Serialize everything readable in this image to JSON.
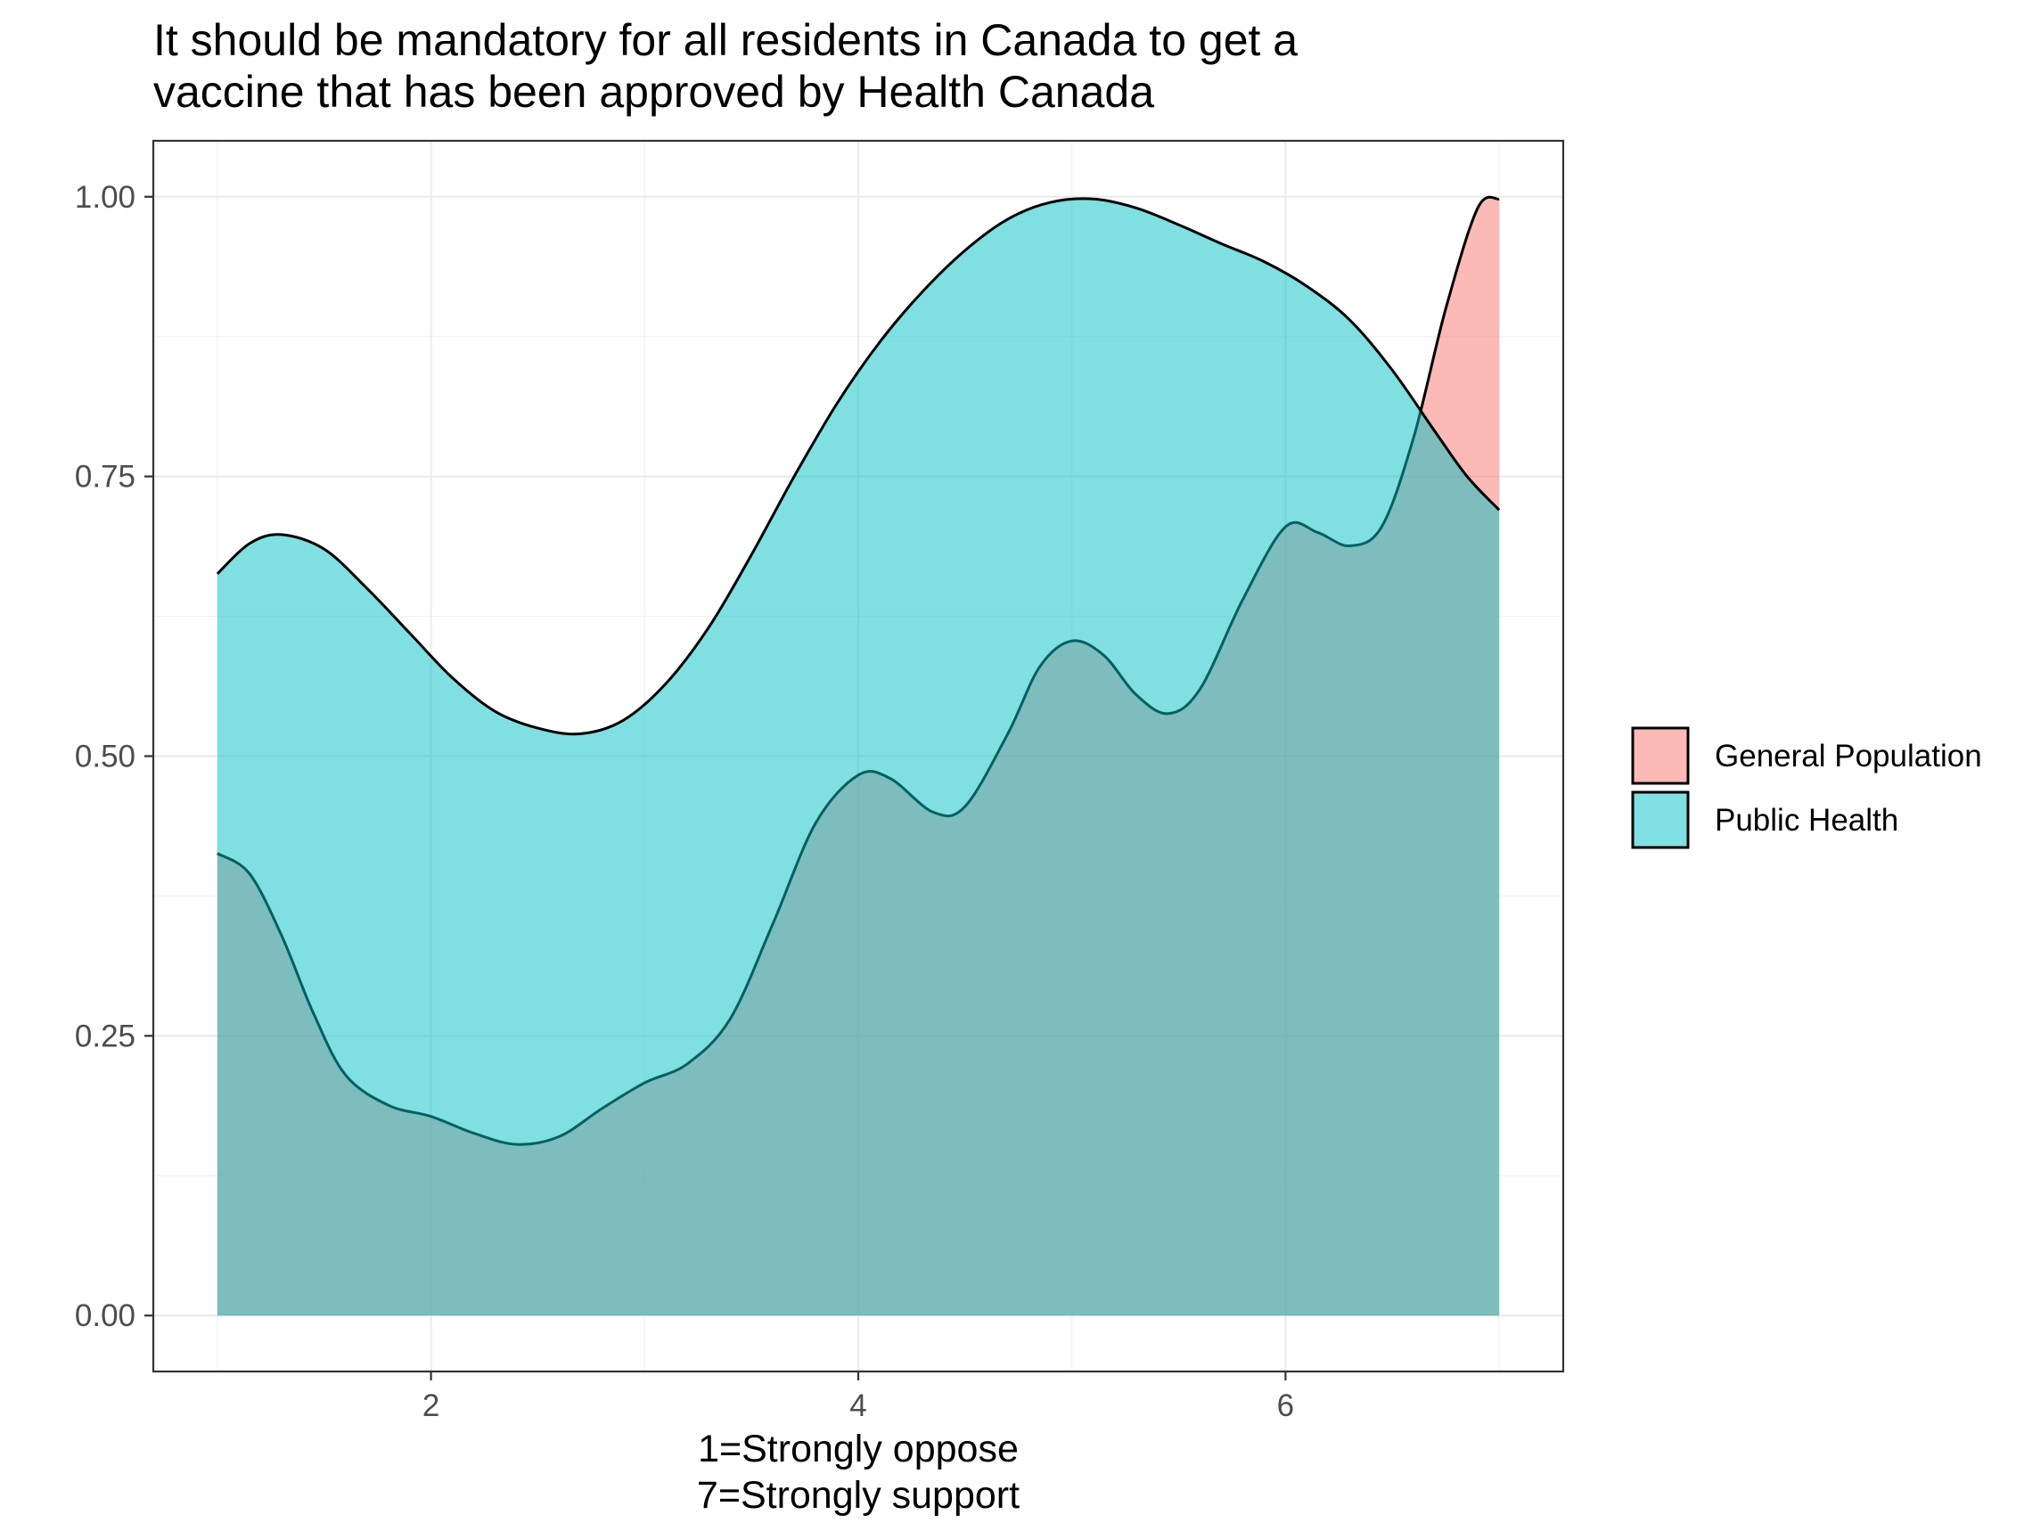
{
  "chart_data": {
    "type": "area",
    "title_lines": [
      "It should be mandatory for all residents in Canada to get a",
      "vaccine that has been approved by Health Canada"
    ],
    "xlabel_lines": [
      "1=Strongly oppose",
      "7=Strongly support"
    ],
    "ylabel": "",
    "xlim": [
      0.7,
      7.3
    ],
    "ylim": [
      -0.05,
      1.05
    ],
    "x_ticks": [
      2,
      4,
      6
    ],
    "x_tick_labels": [
      "2",
      "4",
      "6"
    ],
    "y_ticks": [
      0,
      0.25,
      0.5,
      0.75,
      1.0
    ],
    "y_tick_labels": [
      "0.00",
      "0.25",
      "0.50",
      "0.75",
      "1.00"
    ],
    "grid": true,
    "legend_position": "right",
    "series": [
      {
        "name": "General Population",
        "color": "#F8766D",
        "points": [
          [
            1.0,
            0.413
          ],
          [
            1.15,
            0.395
          ],
          [
            1.3,
            0.34
          ],
          [
            1.45,
            0.27
          ],
          [
            1.6,
            0.215
          ],
          [
            1.8,
            0.188
          ],
          [
            2.0,
            0.178
          ],
          [
            2.2,
            0.163
          ],
          [
            2.4,
            0.153
          ],
          [
            2.6,
            0.16
          ],
          [
            2.8,
            0.185
          ],
          [
            3.0,
            0.208
          ],
          [
            3.2,
            0.225
          ],
          [
            3.4,
            0.265
          ],
          [
            3.6,
            0.35
          ],
          [
            3.8,
            0.44
          ],
          [
            4.0,
            0.483
          ],
          [
            4.15,
            0.48
          ],
          [
            4.35,
            0.45
          ],
          [
            4.5,
            0.455
          ],
          [
            4.7,
            0.52
          ],
          [
            4.85,
            0.58
          ],
          [
            5.0,
            0.603
          ],
          [
            5.15,
            0.59
          ],
          [
            5.3,
            0.555
          ],
          [
            5.45,
            0.538
          ],
          [
            5.6,
            0.56
          ],
          [
            5.8,
            0.64
          ],
          [
            6.0,
            0.705
          ],
          [
            6.15,
            0.7
          ],
          [
            6.3,
            0.688
          ],
          [
            6.45,
            0.705
          ],
          [
            6.6,
            0.785
          ],
          [
            6.75,
            0.9
          ],
          [
            6.9,
            0.99
          ],
          [
            7.0,
            0.998
          ]
        ]
      },
      {
        "name": "Public Health",
        "color": "#00BFC4",
        "points": [
          [
            1.0,
            0.663
          ],
          [
            1.15,
            0.69
          ],
          [
            1.3,
            0.698
          ],
          [
            1.5,
            0.685
          ],
          [
            1.7,
            0.65
          ],
          [
            1.9,
            0.61
          ],
          [
            2.1,
            0.57
          ],
          [
            2.3,
            0.54
          ],
          [
            2.5,
            0.525
          ],
          [
            2.7,
            0.52
          ],
          [
            2.9,
            0.532
          ],
          [
            3.1,
            0.565
          ],
          [
            3.3,
            0.615
          ],
          [
            3.5,
            0.68
          ],
          [
            3.7,
            0.75
          ],
          [
            3.9,
            0.815
          ],
          [
            4.1,
            0.87
          ],
          [
            4.3,
            0.915
          ],
          [
            4.5,
            0.952
          ],
          [
            4.7,
            0.98
          ],
          [
            4.9,
            0.995
          ],
          [
            5.1,
            0.998
          ],
          [
            5.3,
            0.99
          ],
          [
            5.5,
            0.975
          ],
          [
            5.7,
            0.958
          ],
          [
            5.9,
            0.942
          ],
          [
            6.1,
            0.92
          ],
          [
            6.3,
            0.89
          ],
          [
            6.5,
            0.845
          ],
          [
            6.7,
            0.79
          ],
          [
            6.85,
            0.75
          ],
          [
            7.0,
            0.72
          ]
        ]
      }
    ]
  }
}
